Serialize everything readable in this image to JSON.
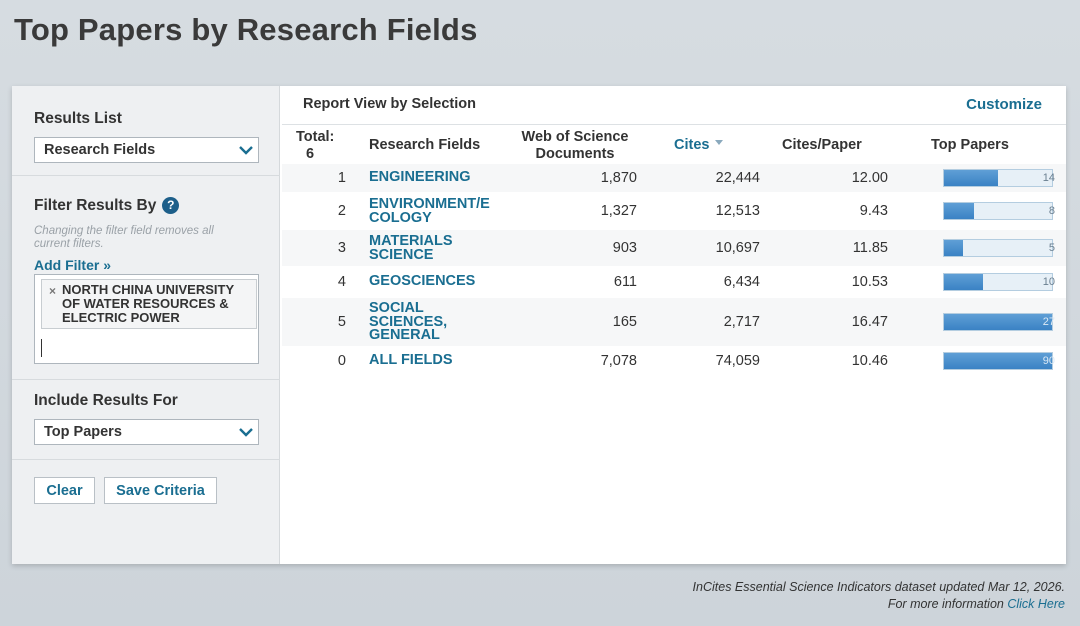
{
  "page": {
    "title": "Top Papers by Research Fields"
  },
  "sidebar": {
    "results_list": {
      "heading": "Results List",
      "selected": "Research Fields"
    },
    "filter": {
      "heading": "Filter Results By",
      "help_glyph": "?",
      "hint": "Changing the filter field removes all current filters.",
      "add_filter": "Add Filter »",
      "chip_remove": "×",
      "chip_text": "NORTH CHINA UNIVERSITY OF WATER RESOURCES & ELECTRIC POWER"
    },
    "include": {
      "heading": "Include Results For",
      "selected": "Top Papers"
    },
    "buttons": {
      "clear": "Clear",
      "save": "Save Criteria"
    }
  },
  "main": {
    "heading": "Report View by Selection",
    "customize": "Customize",
    "columns": {
      "total": "Total:",
      "total_value": "6",
      "field": "Research Fields",
      "docs": "Web of Science Documents",
      "cites": "Cites",
      "cites_paper": "Cites/Paper",
      "top_papers": "Top Papers"
    },
    "rows": [
      {
        "rank": "1",
        "field": "ENGINEERING",
        "docs": "1,870",
        "cites": "22,444",
        "cpp": "12.00",
        "top": "14",
        "frac": 0.5
      },
      {
        "rank": "2",
        "field": "ENVIRONMENT/E COLOGY",
        "docs": "1,327",
        "cites": "12,513",
        "cpp": "9.43",
        "top": "8",
        "frac": 0.28
      },
      {
        "rank": "3",
        "field": "MATERIALS SCIENCE",
        "docs": "903",
        "cites": "10,697",
        "cpp": "11.85",
        "top": "5",
        "frac": 0.18
      },
      {
        "rank": "4",
        "field": "GEOSCIENCES",
        "docs": "611",
        "cites": "6,434",
        "cpp": "10.53",
        "top": "10",
        "frac": 0.36
      },
      {
        "rank": "5",
        "field": "SOCIAL SCIENCES, GENERAL",
        "docs": "165",
        "cites": "2,717",
        "cpp": "16.47",
        "top": "27",
        "frac": 1.0
      },
      {
        "rank": "0",
        "field": "ALL FIELDS",
        "docs": "7,078",
        "cites": "74,059",
        "cpp": "10.46",
        "top": "90",
        "frac": 1.0
      }
    ]
  },
  "footer": {
    "line1": "InCites Essential Science Indicators dataset updated Mar 12, 2026.",
    "line2_prefix": "For more information",
    "line2_link": "Click Here"
  },
  "icons": {
    "dropdown": "chevron-down-icon",
    "help": "help-icon",
    "remove": "close-icon",
    "sort": "sort-desc-icon"
  },
  "colors": {
    "link": "#1a6e91",
    "bar": "#3a82c4",
    "help": "#1d5f8a"
  }
}
